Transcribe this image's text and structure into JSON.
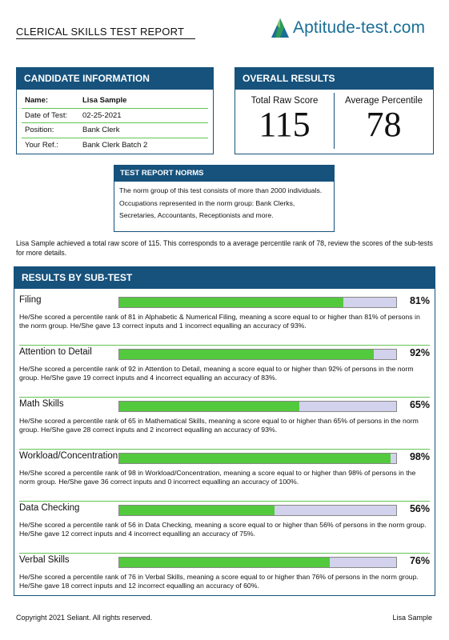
{
  "header": {
    "title": "CLERICAL SKILLS TEST REPORT",
    "logo_text": "Aptitude-test.com",
    "logo_icon": "mountain-logo-icon"
  },
  "candidate": {
    "heading": "CANDIDATE INFORMATION",
    "rows": [
      {
        "label": "Name:",
        "value": "Lisa Sample"
      },
      {
        "label": "Date of Test:",
        "value": "02-25-2021"
      },
      {
        "label": "Position:",
        "value": "Bank Clerk"
      },
      {
        "label": "Your Ref.:",
        "value": "Bank Clerk Batch 2"
      }
    ]
  },
  "overall": {
    "heading": "OVERALL RESULTS",
    "raw_label": "Total Raw Score",
    "raw_value": "115",
    "pct_label": "Average Percentile",
    "pct_value": "78"
  },
  "norms": {
    "heading": "TEST REPORT NORMS",
    "text": "The norm group of this test consists of more than 2000 individuals. Occupations represented in the norm group: Bank Clerks, Secretaries, Accountants, Receptionists and more."
  },
  "summary": "Lisa Sample achieved a total raw score of 115. This corresponds to a average percentile rank of 78, review the scores of the sub-tests for more details.",
  "results": {
    "heading": "RESULTS BY SUB-TEST",
    "subtests": [
      {
        "name": "Filing",
        "percentile": 81,
        "percent_label": "81%",
        "description": "He/She scored a percentile rank of 81 in Alphabetic & Numerical Filing, meaning a score equal to or higher than 81% of persons in the norm group. He/She gave 13 correct inputs and 1 incorrect equalling an accuracy of 93%."
      },
      {
        "name": "Attention to Detail",
        "percentile": 92,
        "percent_label": "92%",
        "description": "He/She scored a percentile rank of 92 in Attention to Detail, meaning a score equal to or higher than 92% of persons in the norm group. He/She gave 19 correct inputs and 4 incorrect equalling an accuracy of 83%."
      },
      {
        "name": "Math Skills",
        "percentile": 65,
        "percent_label": "65%",
        "description": "He/She scored a percentile rank of 65 in Mathematical Skills, meaning a score equal to or higher than 65% of persons in the norm group. He/She gave 28 correct inputs and 2 incorrect equalling an accuracy of 93%."
      },
      {
        "name": "Workload/Concentration",
        "percentile": 98,
        "percent_label": "98%",
        "description": "He/She scored a percentile rank of 98 in Workload/Concentration, meaning a score equal to or higher than 98% of persons in the norm group. He/She gave 36 correct inputs and 0 incorrect equalling an accuracy of 100%."
      },
      {
        "name": "Data Checking",
        "percentile": 56,
        "percent_label": "56%",
        "description": "He/She scored a percentile rank of 56 in Data Checking, meaning a score equal to or higher than 56% of persons in the norm group. He/She gave 12 correct inputs and 4 incorrect equalling an accuracy of 75%."
      },
      {
        "name": "Verbal Skills",
        "percentile": 76,
        "percent_label": "76%",
        "description": "He/She scored a percentile rank of 76 in Verbal Skills, meaning a score equal to or higher than 76% of persons in the norm group. He/She gave 18 correct inputs and 12 incorrect equalling an accuracy of 60%."
      }
    ]
  },
  "footer": {
    "copyright": "Copyright 2021 Seliant. All rights reserved.",
    "name": "Lisa Sample"
  },
  "colors": {
    "header_blue": "#16527c",
    "bar_green": "#53c93d",
    "bar_track": "#d2d2ec",
    "divider_green": "#64c254",
    "logo_blue": "#1b6f96"
  }
}
